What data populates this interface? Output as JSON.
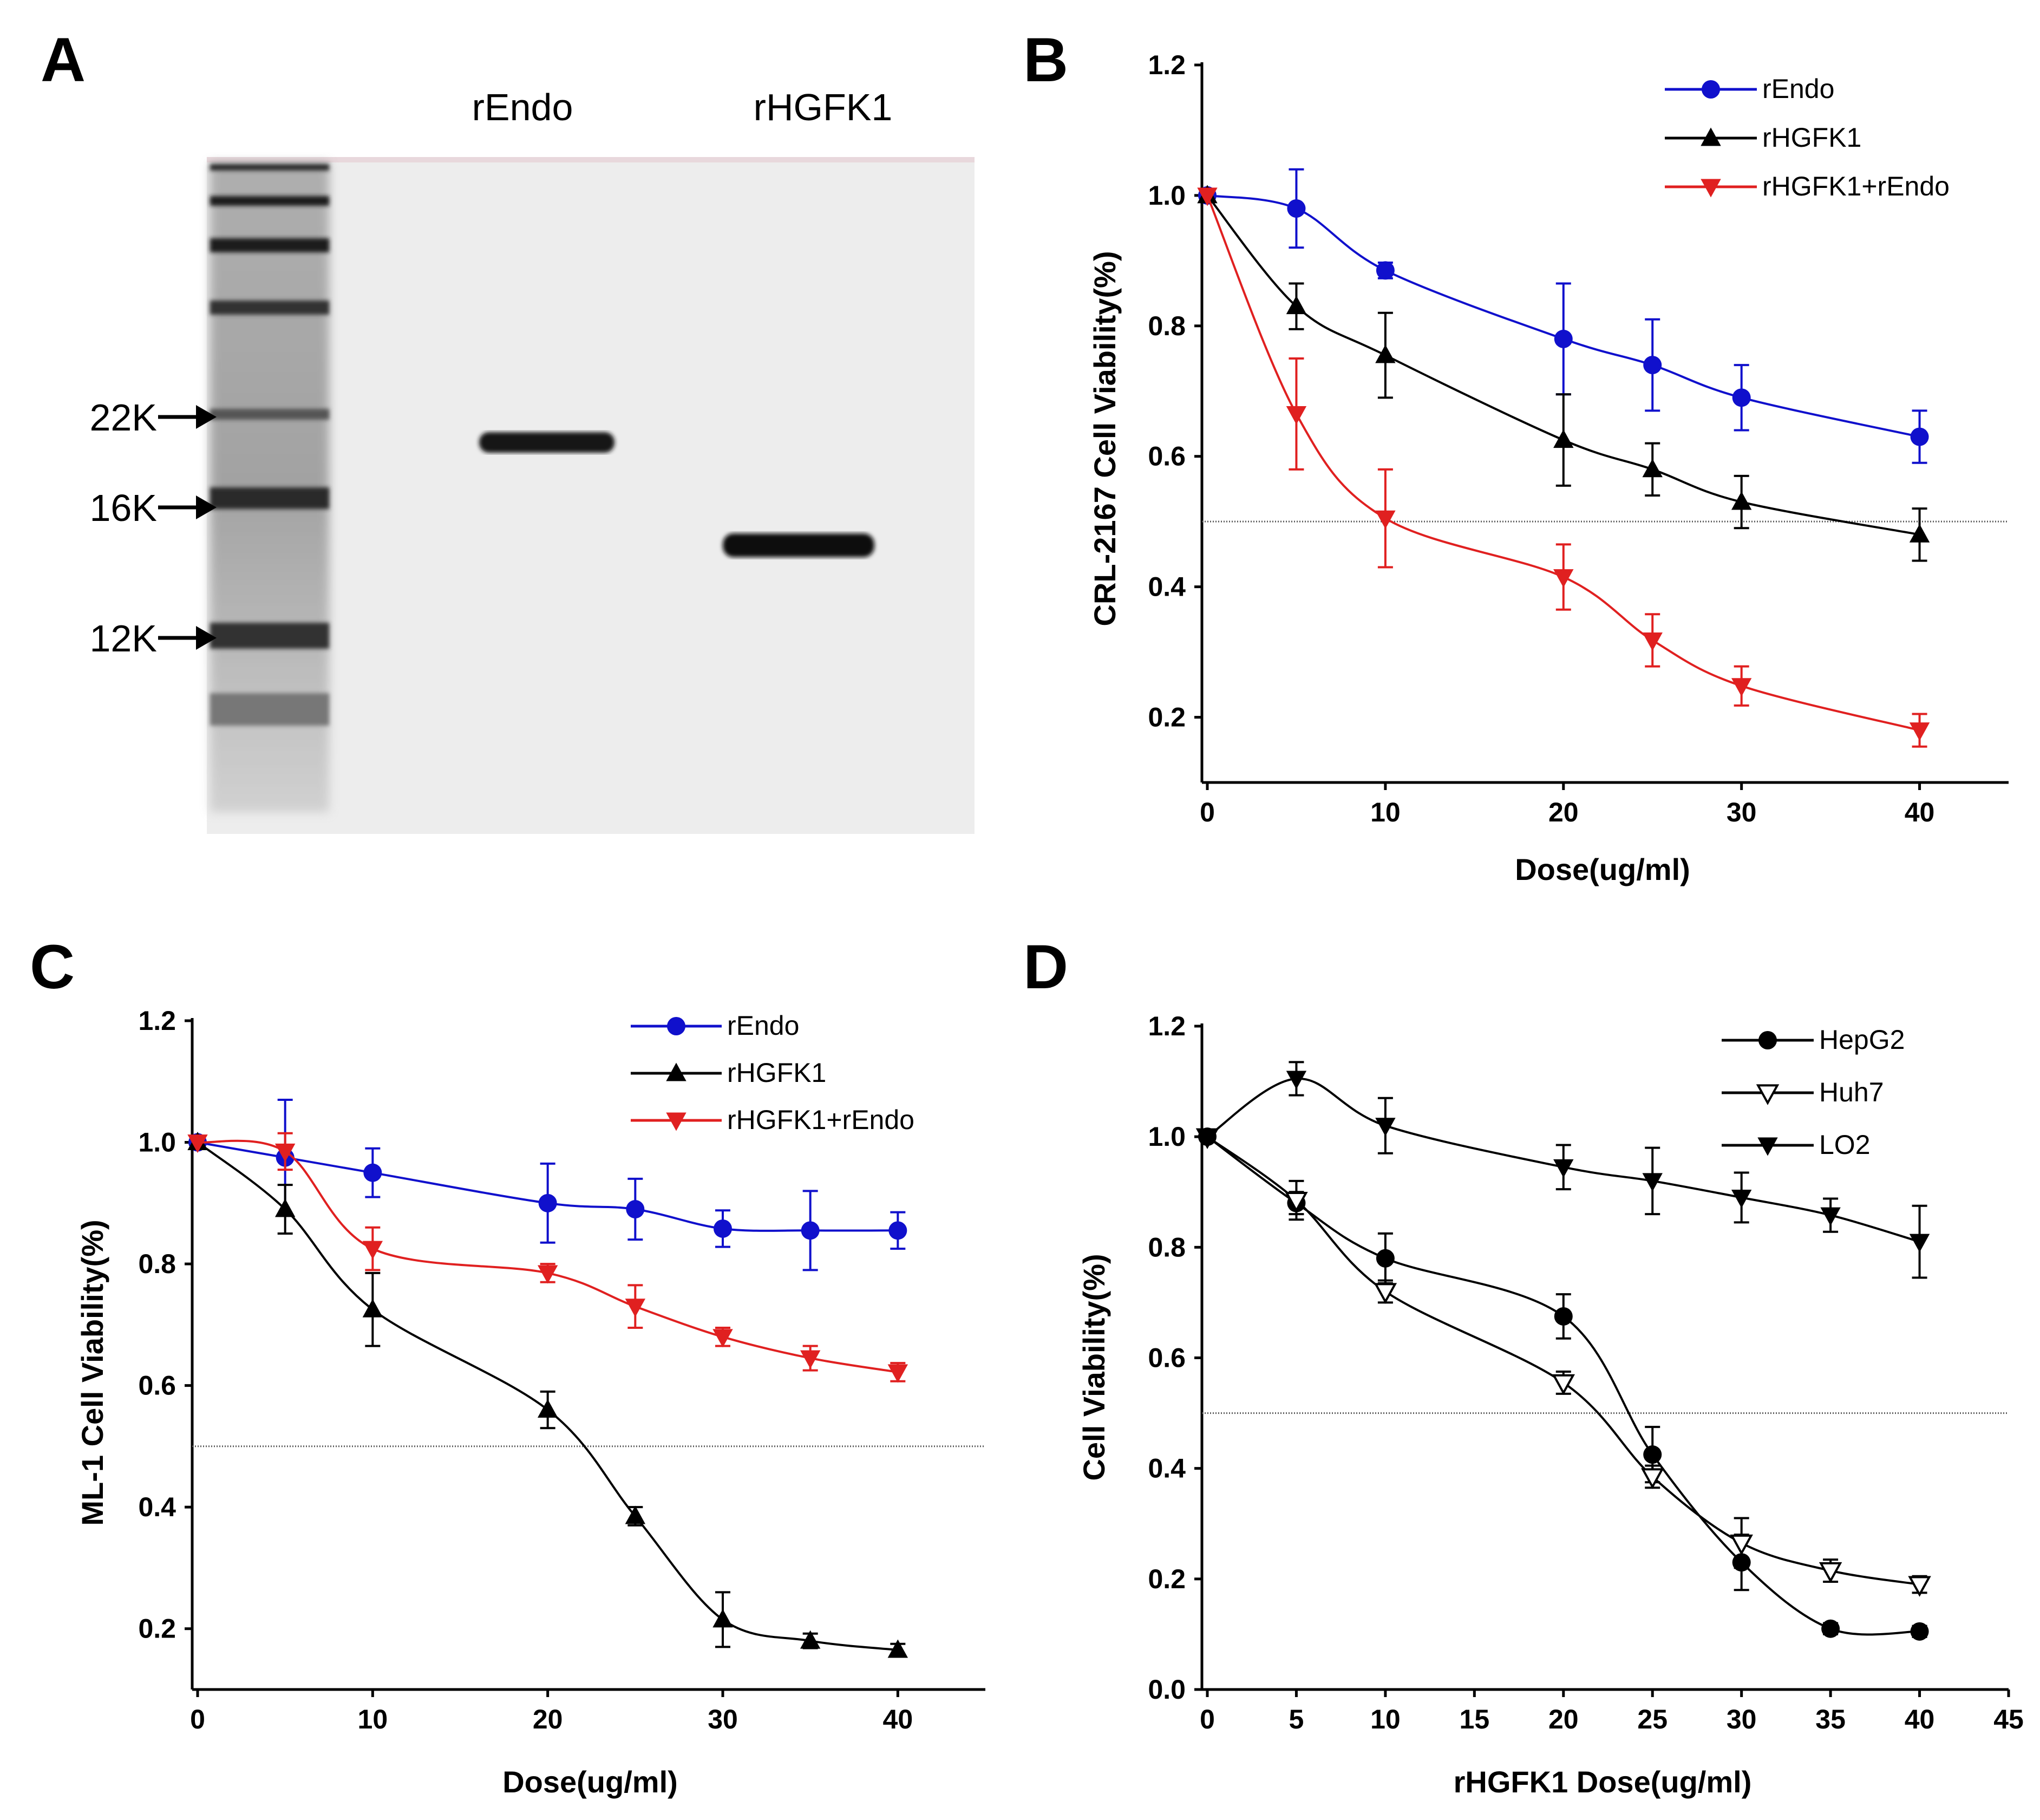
{
  "gel": {
    "letter": "A",
    "lane_labels": [
      "rEndo",
      "rHGFK1"
    ],
    "markers": [
      "22K",
      "16K",
      "12K"
    ]
  },
  "chart_data": [
    {
      "panel": "B",
      "type": "line",
      "title": "",
      "xlabel": "Dose(ug/ml)",
      "ylabel": "CRL-2167 Cell Viability(%)",
      "xlim": [
        0,
        45
      ],
      "ylim": [
        0.1,
        1.2
      ],
      "xticks": [
        0,
        10,
        20,
        30,
        40
      ],
      "yticks": [
        0.2,
        0.4,
        0.6,
        0.8,
        1.0,
        1.2
      ],
      "reference_line_y": 0.5,
      "legend_position": "top-right",
      "series": [
        {
          "name": "rEndo",
          "color": "#1010cc",
          "marker": "circle",
          "x": [
            0,
            5,
            10,
            20,
            25,
            30,
            40
          ],
          "y": [
            1.0,
            0.98,
            0.885,
            0.78,
            0.74,
            0.69,
            0.63
          ],
          "err": [
            0.0,
            0.06,
            0.012,
            0.085,
            0.07,
            0.05,
            0.04
          ]
        },
        {
          "name": "rHGFK1",
          "color": "#000000",
          "marker": "triangle-up",
          "x": [
            0,
            5,
            10,
            20,
            25,
            30,
            40
          ],
          "y": [
            1.0,
            0.83,
            0.755,
            0.625,
            0.58,
            0.53,
            0.48
          ],
          "err": [
            0.0,
            0.035,
            0.065,
            0.07,
            0.04,
            0.04,
            0.04
          ]
        },
        {
          "name": "rHGFK1+rEndo",
          "color": "#e02020",
          "marker": "triangle-down",
          "x": [
            0,
            5,
            10,
            20,
            25,
            30,
            40
          ],
          "y": [
            1.0,
            0.665,
            0.505,
            0.415,
            0.318,
            0.248,
            0.18
          ],
          "err": [
            0.0,
            0.085,
            0.075,
            0.05,
            0.04,
            0.03,
            0.025
          ]
        }
      ]
    },
    {
      "panel": "C",
      "type": "line",
      "title": "",
      "xlabel": "Dose(ug/ml)",
      "ylabel": "ML-1 Cell Viability(%)",
      "xlim": [
        0,
        45
      ],
      "ylim": [
        0.1,
        1.2
      ],
      "xticks": [
        0,
        10,
        20,
        30,
        40
      ],
      "yticks": [
        0.2,
        0.4,
        0.6,
        0.8,
        1.0,
        1.2
      ],
      "reference_line_y": 0.5,
      "legend_position": "top-right",
      "series": [
        {
          "name": "rEndo",
          "color": "#1010cc",
          "marker": "circle",
          "x": [
            0,
            5,
            10,
            20,
            25,
            30,
            35,
            40
          ],
          "y": [
            1.0,
            0.975,
            0.95,
            0.9,
            0.89,
            0.858,
            0.855,
            0.855
          ],
          "err": [
            0.0,
            0.095,
            0.04,
            0.065,
            0.05,
            0.03,
            0.065,
            0.03
          ]
        },
        {
          "name": "rHGFK1",
          "color": "#000000",
          "marker": "triangle-up",
          "x": [
            0,
            5,
            10,
            20,
            25,
            30,
            35,
            40
          ],
          "y": [
            1.0,
            0.89,
            0.725,
            0.56,
            0.385,
            0.215,
            0.18,
            0.165
          ],
          "err": [
            0.0,
            0.04,
            0.06,
            0.03,
            0.015,
            0.045,
            0.012,
            0.01
          ]
        },
        {
          "name": "rHGFK1+rEndo",
          "color": "#e02020",
          "marker": "triangle-down",
          "x": [
            0,
            5,
            10,
            20,
            25,
            30,
            35,
            40
          ],
          "y": [
            1.0,
            0.985,
            0.825,
            0.785,
            0.73,
            0.68,
            0.645,
            0.622
          ],
          "err": [
            0.0,
            0.03,
            0.035,
            0.015,
            0.035,
            0.015,
            0.02,
            0.015
          ]
        }
      ]
    },
    {
      "panel": "D",
      "type": "line",
      "title": "",
      "xlabel": "rHGFK1 Dose(ug/ml)",
      "ylabel": "Cell Viability(%)",
      "xlim": [
        0,
        45
      ],
      "ylim": [
        0.0,
        1.2
      ],
      "xticks": [
        0,
        5,
        10,
        15,
        20,
        25,
        30,
        35,
        40,
        45
      ],
      "yticks": [
        0.0,
        0.2,
        0.4,
        0.6,
        0.8,
        1.0,
        1.2
      ],
      "reference_line_y": 0.5,
      "legend_position": "top-right",
      "series": [
        {
          "name": "HepG2",
          "color": "#000000",
          "marker": "circle",
          "x": [
            0,
            5,
            10,
            20,
            25,
            30,
            35,
            40
          ],
          "y": [
            1.0,
            0.88,
            0.78,
            0.675,
            0.425,
            0.23,
            0.11,
            0.105
          ],
          "err": [
            0.0,
            0.02,
            0.045,
            0.04,
            0.05,
            0.05,
            0.01,
            0.01
          ]
        },
        {
          "name": "Huh7",
          "color": "#000000",
          "marker": "triangle-down-open",
          "x": [
            0,
            5,
            10,
            20,
            25,
            30,
            35,
            40
          ],
          "y": [
            1.0,
            0.885,
            0.72,
            0.555,
            0.385,
            0.265,
            0.215,
            0.19
          ],
          "err": [
            0.0,
            0.035,
            0.02,
            0.02,
            0.02,
            0.045,
            0.02,
            0.015
          ]
        },
        {
          "name": "LO2",
          "color": "#000000",
          "marker": "triangle-down",
          "x": [
            0,
            5,
            10,
            20,
            25,
            30,
            35,
            40
          ],
          "y": [
            1.0,
            1.105,
            1.02,
            0.945,
            0.92,
            0.89,
            0.858,
            0.81
          ],
          "err": [
            0.0,
            0.03,
            0.05,
            0.04,
            0.06,
            0.045,
            0.03,
            0.065
          ]
        }
      ]
    }
  ]
}
